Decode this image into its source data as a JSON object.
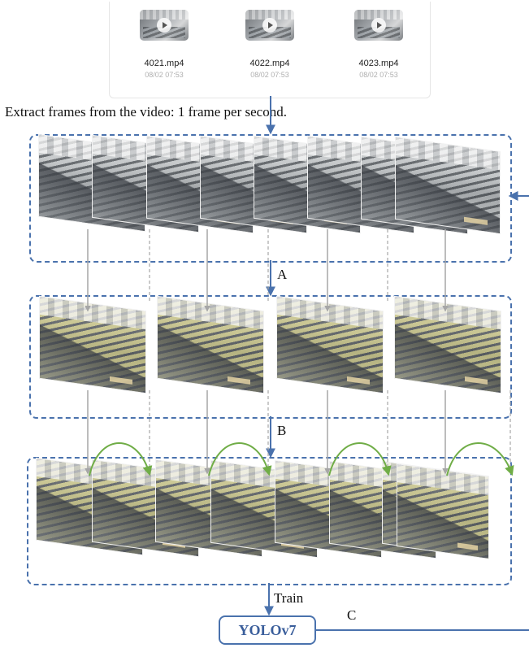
{
  "files": [
    {
      "name": "4021.mp4",
      "date": "08/02 07:53"
    },
    {
      "name": "4022.mp4",
      "date": "08/02 07:53"
    },
    {
      "name": "4023.mp4",
      "date": "08/02 07:53"
    }
  ],
  "caption": "Extract frames from the video: 1 frame per second.",
  "labels": {
    "a": "A",
    "b": "B",
    "train": "Train",
    "c": "C"
  },
  "model": {
    "name": "YOLOv7"
  },
  "colors": {
    "box_border": "#4a72ad",
    "sample_line": "#a6a6a6",
    "arc": "#70ad47",
    "text": "#111111"
  },
  "icons": {
    "play": "play-icon"
  },
  "rows": {
    "extracted_frames": 8,
    "sampled_frames": 4,
    "augmented_frames": 8
  }
}
